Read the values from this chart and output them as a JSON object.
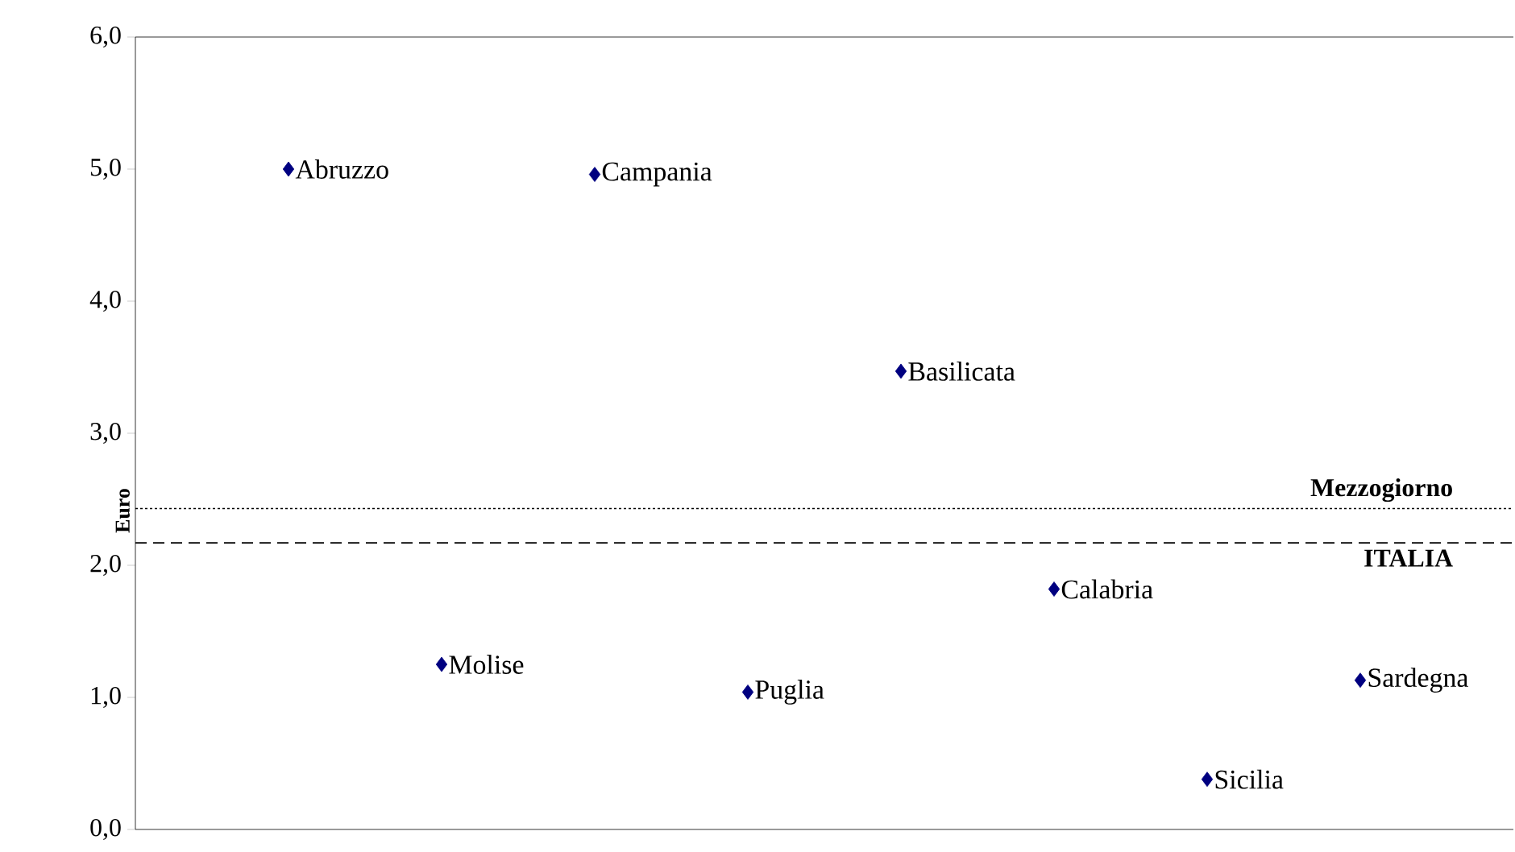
{
  "chart_data": {
    "type": "scatter",
    "ylabel": "Euro",
    "categories": [
      null,
      null,
      null,
      null,
      null,
      null,
      null,
      null
    ],
    "series": [
      {
        "name": "Abruzzo",
        "color": "#000080",
        "values": [
          5.0,
          null,
          null,
          null,
          null,
          null,
          null,
          null
        ]
      },
      {
        "name": "Molise",
        "color": "#000080",
        "values": [
          null,
          1.25,
          null,
          null,
          null,
          null,
          null,
          null
        ]
      },
      {
        "name": "Campania",
        "color": "#000080",
        "values": [
          null,
          null,
          4.96,
          null,
          null,
          null,
          null,
          null
        ]
      },
      {
        "name": "Puglia",
        "color": "#000080",
        "values": [
          null,
          null,
          null,
          1.04,
          null,
          null,
          null,
          null
        ]
      },
      {
        "name": "Basilicata",
        "color": "#000080",
        "values": [
          null,
          null,
          null,
          null,
          3.47,
          null,
          null,
          null
        ]
      },
      {
        "name": "Calabria",
        "color": "#000080",
        "values": [
          null,
          null,
          null,
          null,
          null,
          1.82,
          null,
          null
        ]
      },
      {
        "name": "Sicilia",
        "color": "#000080",
        "values": [
          null,
          null,
          null,
          null,
          null,
          null,
          0.38,
          null
        ]
      },
      {
        "name": "Sardegna",
        "color": "#000080",
        "values": [
          null,
          null,
          null,
          null,
          null,
          null,
          null,
          1.13
        ]
      }
    ],
    "marker": "diamond",
    "ylim": [
      0,
      6
    ],
    "yticks": [
      {
        "value": 0,
        "label": "0,0"
      },
      {
        "value": 1,
        "label": "1,0"
      },
      {
        "value": 2,
        "label": "2,0"
      },
      {
        "value": 3,
        "label": "3,0"
      },
      {
        "value": 4,
        "label": "4,0"
      },
      {
        "value": 5,
        "label": "5,0"
      },
      {
        "value": 6,
        "label": "6,0"
      }
    ],
    "tick_labels": "y",
    "ref_lines": [
      {
        "axis": "y",
        "value": 2.43,
        "label": "Mezzogiorno",
        "line_style": "dotted"
      },
      {
        "axis": "y",
        "value": 2.17,
        "label": "ITALIA",
        "line_style": "dashed"
      }
    ]
  }
}
